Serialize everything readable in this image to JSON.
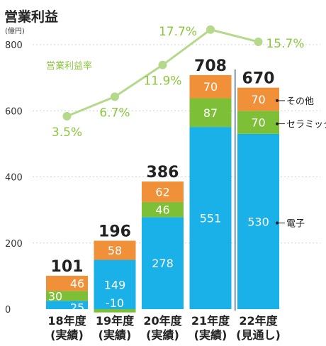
{
  "chart_data": {
    "type": "bar",
    "stacked": true,
    "title": "営業利益",
    "unit": "(億円)",
    "yticks": [
      "0",
      "200",
      "400",
      "600",
      "800"
    ],
    "ylim": [
      0,
      800
    ],
    "categories": [
      [
        "18年度",
        "(実績)"
      ],
      [
        "19年度",
        "(実績)"
      ],
      [
        "20年度",
        "(実績)"
      ],
      [
        "21年度",
        "(実績)"
      ],
      [
        "22年度",
        "(見通し)"
      ]
    ],
    "totals": [
      101,
      196,
      386,
      708,
      670
    ],
    "series": [
      {
        "name": "電子",
        "color": "#1ab0e8",
        "values": [
          25,
          149,
          278,
          551,
          530
        ]
      },
      {
        "name": "セラミック",
        "color": "#7dbf37",
        "values": [
          30,
          -10,
          46,
          87,
          70
        ]
      },
      {
        "name": "その他",
        "color": "#f0913a",
        "values": [
          46,
          58,
          62,
          70,
          70
        ]
      }
    ],
    "rate": {
      "name": "営業利益率",
      "color": "#b5d98a",
      "values": [
        3.5,
        6.7,
        11.9,
        17.7,
        15.7
      ],
      "labels": [
        "3.5%",
        "6.7%",
        "11.9%",
        "17.7%",
        "15.7%"
      ]
    },
    "forecast_divider_after_index": 3
  }
}
